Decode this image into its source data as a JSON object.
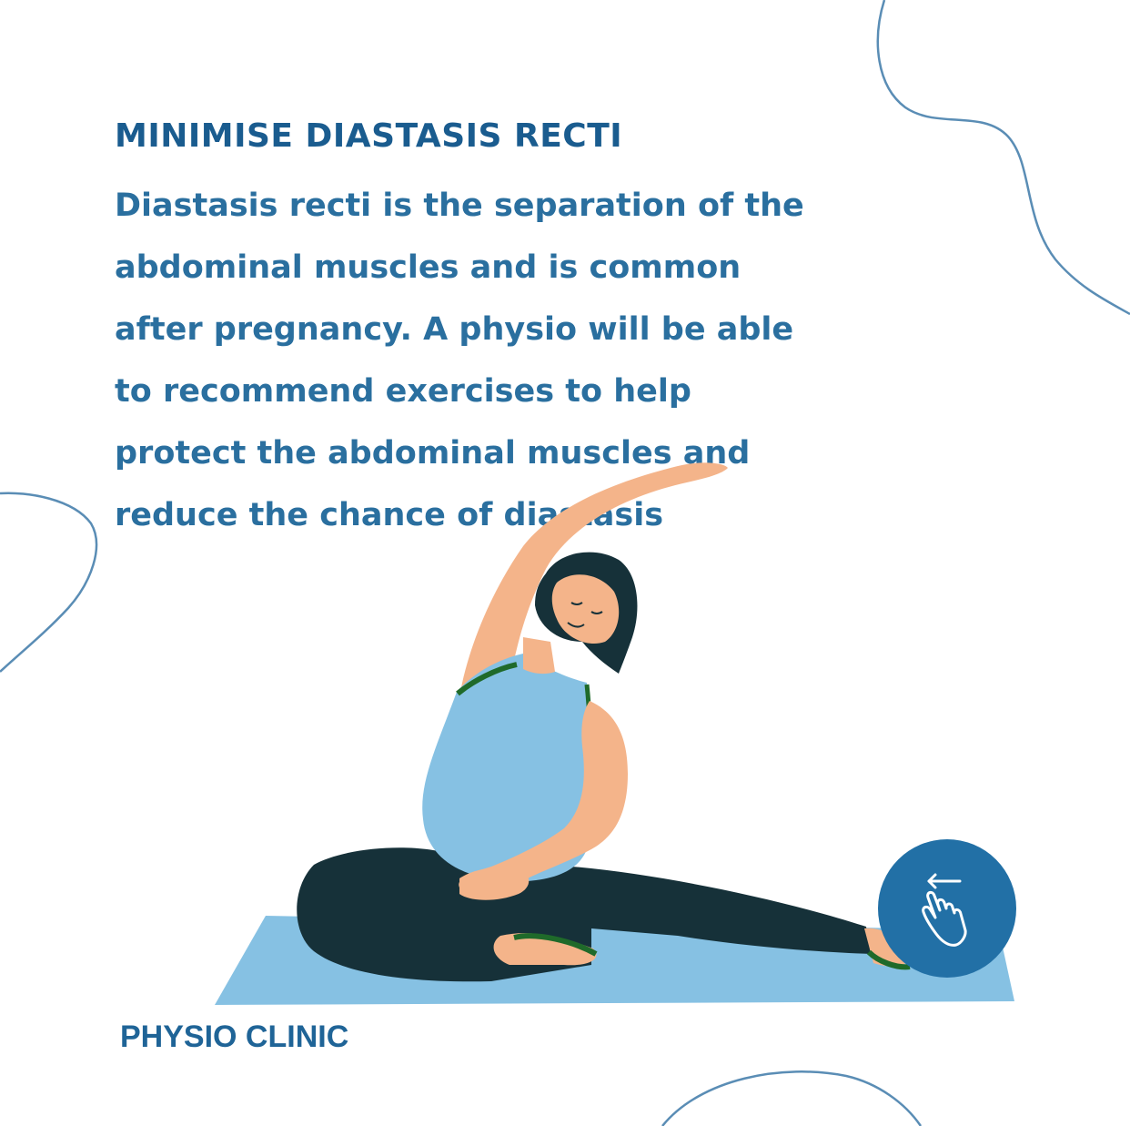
{
  "headline": "MINIMISE DIASTASIS RECTI",
  "body_lines": [
    "Diastasis recti is the separation of the",
    "abdominal muscles and is common",
    "after pregnancy. A physio will be able",
    "to recommend exercises to help",
    "protect the abdominal muscles and",
    "reduce the chance of diastasis"
  ],
  "brand": "PHYSIO CLINIC",
  "swipe_icon": "swipe-left-hand-icon",
  "colors": {
    "headline": "#1a5c8f",
    "body_text": "#2a6f9f",
    "brand": "#1f6497",
    "swipe_button": "#2270a6",
    "decorative_lines": "#5a8db5",
    "mat": "#86c1e3",
    "top": "#86c1e3",
    "skin": "#f4b48a",
    "hair_and_leggings": "#163139",
    "trim": "#1f6a2a"
  }
}
